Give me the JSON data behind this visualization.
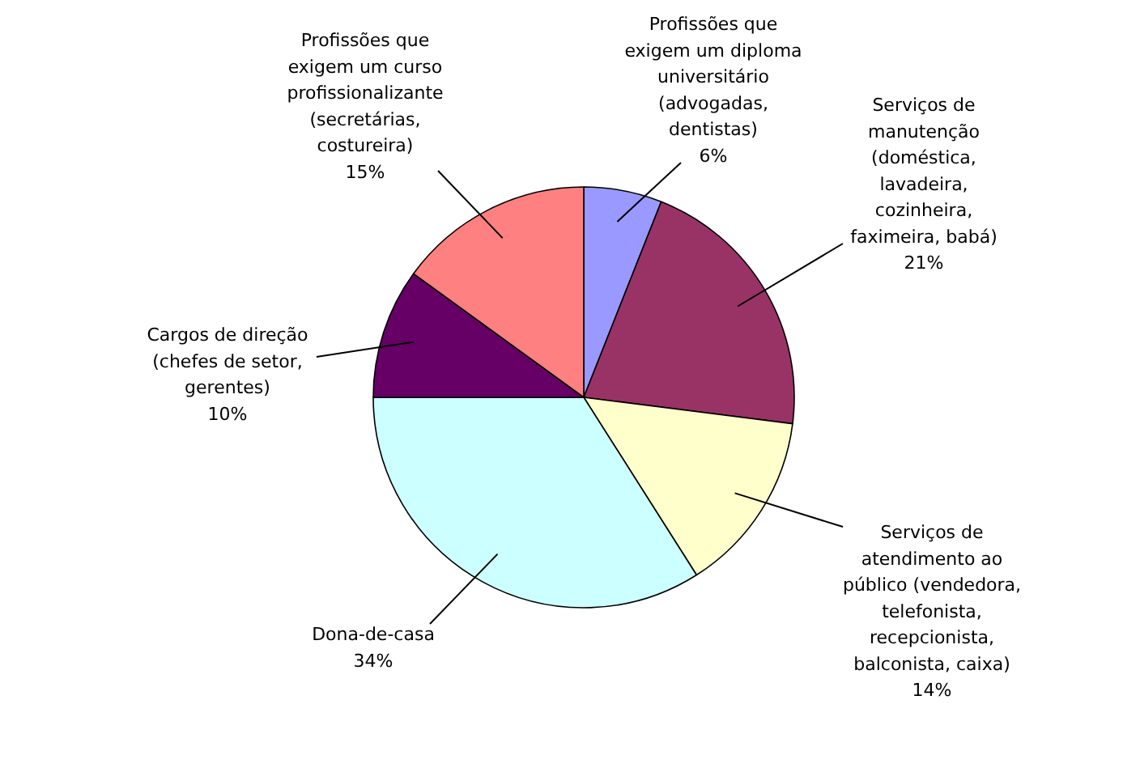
{
  "chart_data": {
    "type": "pie",
    "categories": [
      "Profissões que\nexigem um diploma\nuniversitário\n(advogadas,\ndentistas)",
      "Serviços de\nmanutenção\n(doméstica,\nlavadeira,\ncozinheira,\nfaximeira, babá)",
      "Serviços de\natendimento ao\npúblico (vendedora,\ntelefonista,\nrecepcionista,\nbalconista, caixa)",
      "Dona-de-casa",
      "Cargos de direção\n(chefes de setor,\ngerentes)",
      "Profissões que\nexigem um curso\nprofissionalizante\n(secretárias,\ncostureira)"
    ],
    "values": [
      6,
      21,
      14,
      34,
      10,
      15
    ],
    "value_labels": [
      "6%",
      "21%",
      "14%",
      "34%",
      "10%",
      "15%"
    ],
    "colors": [
      "#9999ff",
      "#993366",
      "#ffffcc",
      "#ccffff",
      "#660066",
      "#ff8080"
    ]
  }
}
